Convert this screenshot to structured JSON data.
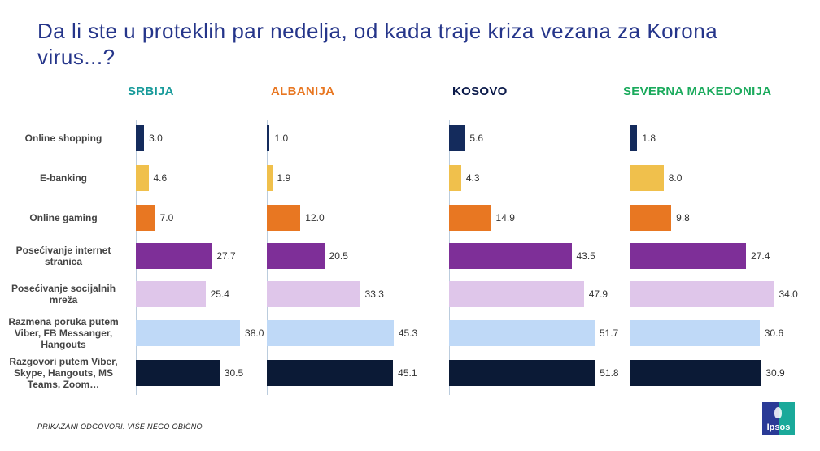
{
  "chart_data": {
    "type": "bar",
    "orientation": "horizontal",
    "title": "Da li ste u proteklih par nedelja, od kada traje kriza vezana za Korona virus...?",
    "categories": [
      "Online shopping",
      "E-banking",
      "Online gaming",
      "Posećivanje internet stranica",
      "Posećivanje socijalnih mreža",
      "Razmena poruka putem Viber, FB Messanger, Hangouts",
      "Razgovori putem Viber, Skype, Hangouts, MS Teams, Zoom…"
    ],
    "category_colors": [
      "#142b5c",
      "#f0c04c",
      "#e87722",
      "#7e2f98",
      "#dfc6ea",
      "#bfd9f7",
      "#0b1a36"
    ],
    "panels": [
      {
        "name": "SRBIJA",
        "color": "#179a9a",
        "values": [
          3.0,
          4.6,
          7.0,
          27.7,
          25.4,
          38.0,
          30.5
        ]
      },
      {
        "name": "ALBANIJA",
        "color": "#e87722",
        "values": [
          1.0,
          1.9,
          12.0,
          20.5,
          33.3,
          45.3,
          45.1
        ]
      },
      {
        "name": "KOSOVO",
        "color": "#0b1a4a",
        "values": [
          5.6,
          4.3,
          14.9,
          43.5,
          47.9,
          51.7,
          51.8
        ]
      },
      {
        "name": "SEVERNA MAKEDONIJA",
        "color": "#1aaa5c",
        "values": [
          1.8,
          8.0,
          9.8,
          27.4,
          34.0,
          30.6,
          30.9
        ]
      }
    ]
  },
  "footer": "PRIKAZANI ODGOVORI: VIŠE NEGO OBIČNO",
  "logo": "Ipsos"
}
